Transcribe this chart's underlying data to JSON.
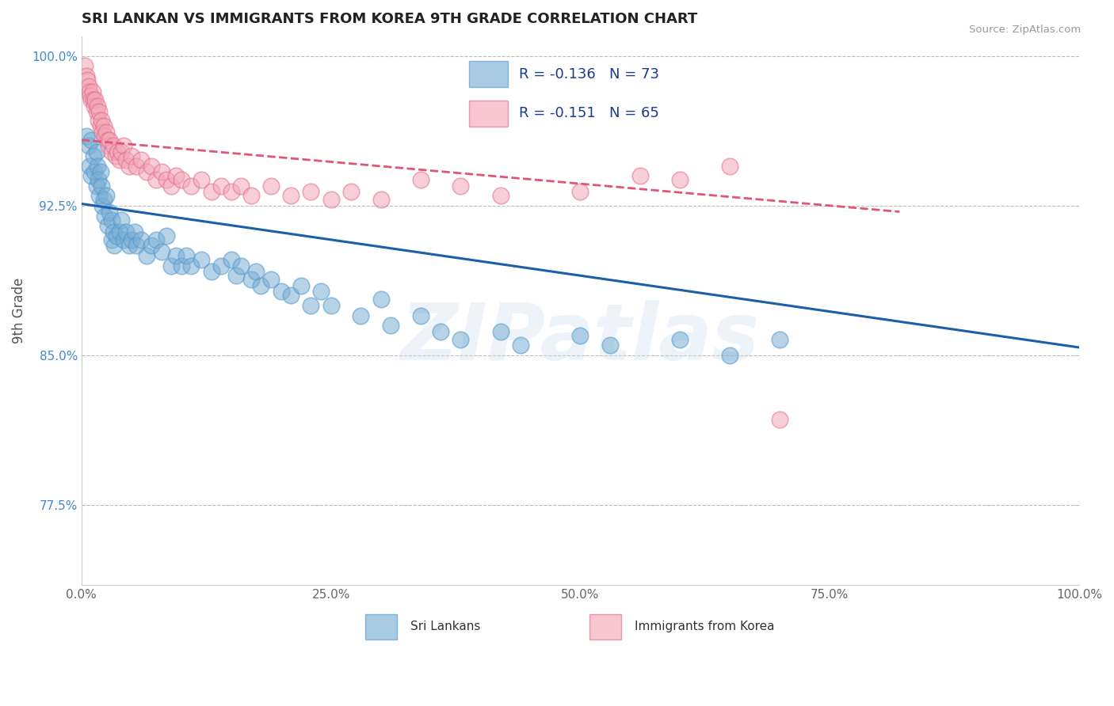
{
  "title": "SRI LANKAN VS IMMIGRANTS FROM KOREA 9TH GRADE CORRELATION CHART",
  "source": "Source: ZipAtlas.com",
  "ylabel": "9th Grade",
  "xlim": [
    0.0,
    1.0
  ],
  "ylim": [
    0.735,
    1.01
  ],
  "yticks": [
    0.775,
    0.85,
    0.925,
    1.0
  ],
  "ytick_labels": [
    "77.5%",
    "85.0%",
    "92.5%",
    "100.0%"
  ],
  "xticks": [
    0.0,
    0.25,
    0.5,
    0.75,
    1.0
  ],
  "xtick_labels": [
    "0.0%",
    "25.0%",
    "50.0%",
    "75.0%",
    "100.0%"
  ],
  "sri_lankans": {
    "R": -0.136,
    "N": 73,
    "color": "#7aafd4",
    "edge_color": "#5599cc",
    "line_color": "#1a5fa8",
    "label": "Sri Lankans",
    "trend_y_start": 0.926,
    "trend_y_end": 0.854
  },
  "korea": {
    "R": -0.151,
    "N": 65,
    "color": "#f4a8b8",
    "edge_color": "#e07090",
    "line_color": "#e05575",
    "label": "Immigrants from Korea",
    "trend_y_start": 0.958,
    "trend_y_end": 0.922
  },
  "grid_color": "#BBBBBB",
  "background_color": "#FFFFFF",
  "title_color": "#222222",
  "axis_label_color": "#555555",
  "ytick_color": "#4488CC",
  "stat_color": "#1a3c8c",
  "watermark_text": "ZIPatlas",
  "blue_scatter_x": [
    0.005,
    0.007,
    0.008,
    0.01,
    0.01,
    0.012,
    0.013,
    0.015,
    0.015,
    0.016,
    0.017,
    0.018,
    0.019,
    0.02,
    0.021,
    0.022,
    0.023,
    0.025,
    0.026,
    0.028,
    0.03,
    0.03,
    0.032,
    0.033,
    0.035,
    0.038,
    0.04,
    0.042,
    0.045,
    0.048,
    0.05,
    0.053,
    0.055,
    0.06,
    0.065,
    0.07,
    0.075,
    0.08,
    0.085,
    0.09,
    0.095,
    0.1,
    0.105,
    0.11,
    0.12,
    0.13,
    0.14,
    0.15,
    0.155,
    0.16,
    0.17,
    0.175,
    0.18,
    0.19,
    0.2,
    0.21,
    0.22,
    0.23,
    0.24,
    0.25,
    0.28,
    0.3,
    0.31,
    0.34,
    0.36,
    0.38,
    0.42,
    0.44,
    0.5,
    0.53,
    0.6,
    0.65,
    0.7
  ],
  "blue_scatter_y": [
    0.96,
    0.955,
    0.945,
    0.958,
    0.94,
    0.95,
    0.942,
    0.952,
    0.935,
    0.945,
    0.938,
    0.93,
    0.942,
    0.935,
    0.925,
    0.928,
    0.92,
    0.93,
    0.915,
    0.922,
    0.918,
    0.908,
    0.912,
    0.905,
    0.91,
    0.912,
    0.918,
    0.908,
    0.912,
    0.905,
    0.908,
    0.912,
    0.905,
    0.908,
    0.9,
    0.905,
    0.908,
    0.902,
    0.91,
    0.895,
    0.9,
    0.895,
    0.9,
    0.895,
    0.898,
    0.892,
    0.895,
    0.898,
    0.89,
    0.895,
    0.888,
    0.892,
    0.885,
    0.888,
    0.882,
    0.88,
    0.885,
    0.875,
    0.882,
    0.875,
    0.87,
    0.878,
    0.865,
    0.87,
    0.862,
    0.858,
    0.862,
    0.855,
    0.86,
    0.855,
    0.858,
    0.85,
    0.858
  ],
  "pink_scatter_x": [
    0.003,
    0.005,
    0.006,
    0.007,
    0.008,
    0.009,
    0.01,
    0.011,
    0.012,
    0.013,
    0.014,
    0.015,
    0.016,
    0.017,
    0.018,
    0.019,
    0.02,
    0.021,
    0.022,
    0.023,
    0.025,
    0.026,
    0.027,
    0.028,
    0.03,
    0.032,
    0.034,
    0.036,
    0.038,
    0.04,
    0.042,
    0.045,
    0.048,
    0.05,
    0.055,
    0.06,
    0.065,
    0.07,
    0.075,
    0.08,
    0.085,
    0.09,
    0.095,
    0.1,
    0.11,
    0.12,
    0.13,
    0.14,
    0.15,
    0.16,
    0.17,
    0.19,
    0.21,
    0.23,
    0.25,
    0.27,
    0.3,
    0.34,
    0.38,
    0.42,
    0.5,
    0.56,
    0.6,
    0.65,
    0.7
  ],
  "pink_scatter_y": [
    0.995,
    0.99,
    0.988,
    0.985,
    0.982,
    0.98,
    0.978,
    0.982,
    0.978,
    0.975,
    0.978,
    0.972,
    0.975,
    0.968,
    0.972,
    0.965,
    0.968,
    0.962,
    0.965,
    0.96,
    0.962,
    0.958,
    0.955,
    0.958,
    0.952,
    0.955,
    0.95,
    0.952,
    0.948,
    0.952,
    0.955,
    0.948,
    0.945,
    0.95,
    0.945,
    0.948,
    0.942,
    0.945,
    0.938,
    0.942,
    0.938,
    0.935,
    0.94,
    0.938,
    0.935,
    0.938,
    0.932,
    0.935,
    0.932,
    0.935,
    0.93,
    0.935,
    0.93,
    0.932,
    0.928,
    0.932,
    0.928,
    0.938,
    0.935,
    0.93,
    0.932,
    0.94,
    0.938,
    0.945,
    0.818
  ]
}
